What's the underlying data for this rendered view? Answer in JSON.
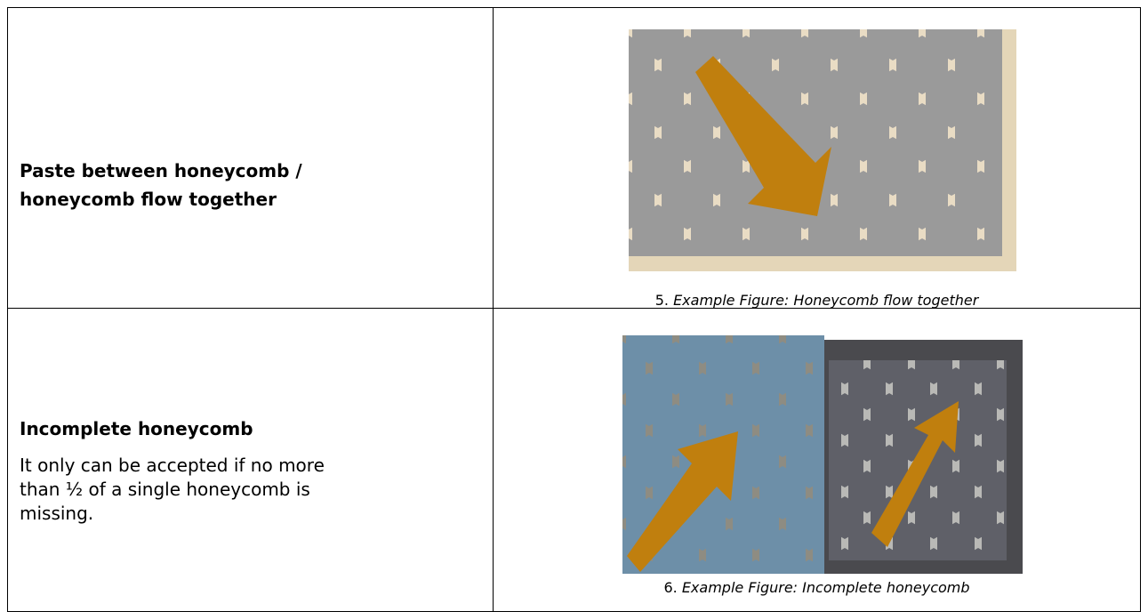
{
  "rows": [
    {
      "title": "Paste between honeycomb / honeycomb flow together",
      "caption": {
        "number": "5.",
        "text": "Example Figure: Honeycomb flow together"
      }
    },
    {
      "title": "Incomplete honeycomb",
      "description": "It only can be accepted if no more than ½ of a single honeycomb is missing.",
      "caption": {
        "number": "6.",
        "text": "Example Figure: Incomplete honeycomb"
      }
    }
  ]
}
